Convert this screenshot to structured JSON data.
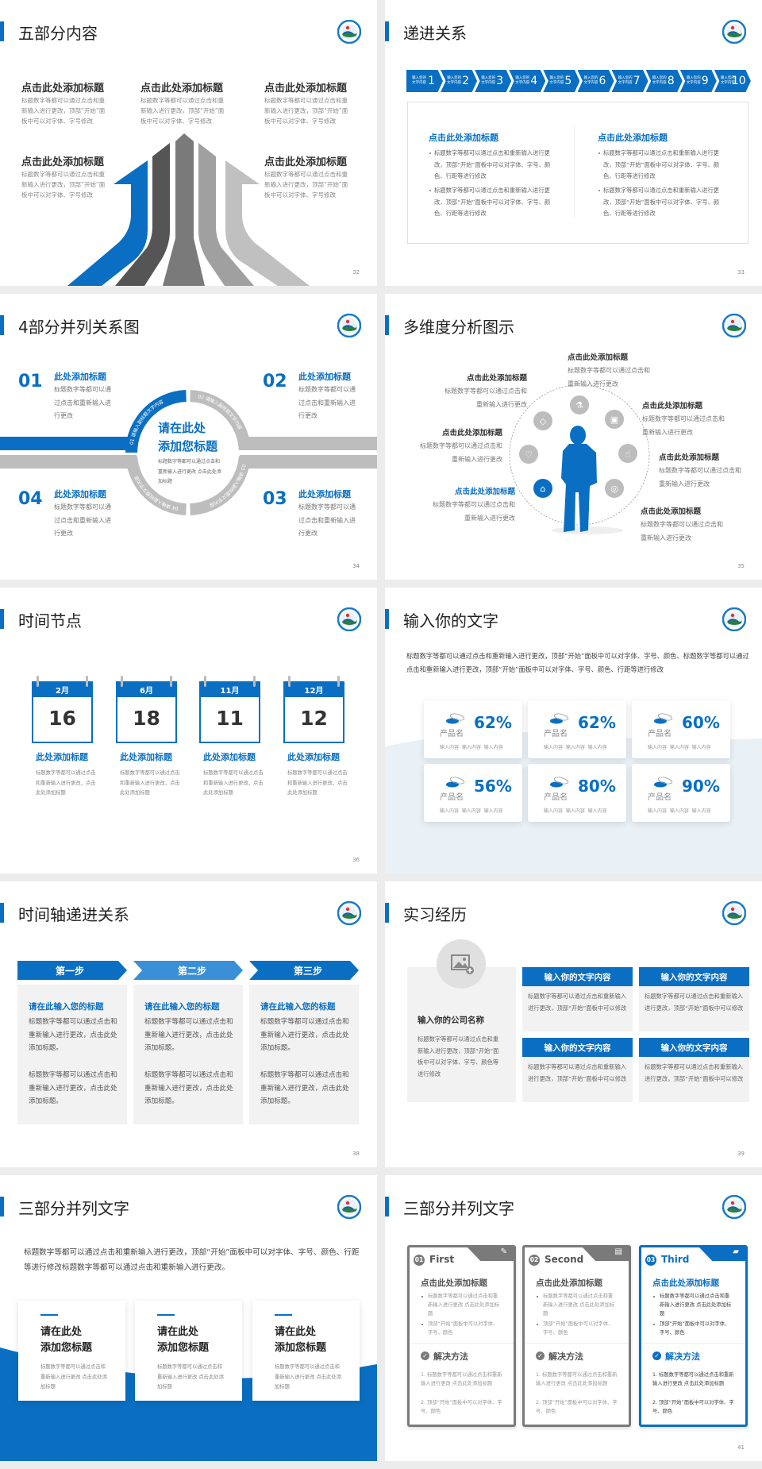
{
  "theme": {
    "accent": "#0a6fc2",
    "accent_light": "#3a8fd6",
    "gray_panel": "#f2f2f2",
    "gray_dark": "#777777"
  },
  "slides": [
    {
      "page": "32",
      "title": "五部分内容",
      "items": [
        {
          "title": "点击此处添加标题",
          "text": "标题数字等都可以通过点击和重新输入进行更改，顶部“开始”面板中可以对字体、字号修改"
        },
        {
          "title": "点击此处添加标题",
          "text": "标题数字等都可以通过点击和重新输入进行更改，顶部“开始”面板中可以对字体、字号修改"
        },
        {
          "title": "点击此处添加标题",
          "text": "标题数字等都可以通过点击和重新输入进行更改，顶部“开始”面板中可以对字体、字号修改"
        },
        {
          "title": "点击此处添加标题",
          "text": "标题数字等都可以通过点击和重新输入进行更改，顶部“开始”面板中可以对字体、字号修改"
        },
        {
          "title": "点击此处添加标题",
          "text": "标题数字等都可以通过点击和重新输入进行更改，顶部“开始”面板中可以对字体、字号修改"
        }
      ]
    },
    {
      "page": "33",
      "title": "递进关系",
      "steps": [
        {
          "label": "输入您的文字内容",
          "num": "1"
        },
        {
          "label": "输入您的文字内容",
          "num": "2"
        },
        {
          "label": "输入您的文字内容",
          "num": "3"
        },
        {
          "label": "输入您的文字内容",
          "num": "4"
        },
        {
          "label": "输入您的文字内容",
          "num": "5"
        },
        {
          "label": "输入您的文字内容",
          "num": "6"
        },
        {
          "label": "输入您的文字内容",
          "num": "7"
        },
        {
          "label": "输入您的文字内容",
          "num": "8"
        },
        {
          "label": "输入您的文字内容",
          "num": "9"
        },
        {
          "label": "输入您的文字内容",
          "num": "10"
        }
      ],
      "columns": [
        {
          "title": "点击此处添加标题",
          "bullets": [
            "标题数字等都可以通过点击和重新输入进行更改，顶部“开始”面板中可以对字体、字号、颜色、行距等进行修改",
            "标题数字等都可以通过点击和重新输入进行更改，顶部“开始”面板中可以对字体、字号、颜色、行距等进行修改"
          ]
        },
        {
          "title": "点击此处添加标题",
          "bullets": [
            "标题数字等都可以通过点击和重新输入进行更改，顶部“开始”面板中可以对字体、字号、颜色、行距等进行修改",
            "标题数字等都可以通过点击和重新输入进行更改，顶部“开始”面板中可以对字体、字号、颜色、行距等进行修改"
          ]
        }
      ]
    },
    {
      "page": "34",
      "title": "4部分并列关系图",
      "items": [
        {
          "num": "01",
          "title": "此处添加标题",
          "text": "标题数字等都可以通过点击和重新输入进行更改"
        },
        {
          "num": "02",
          "title": "此处添加标题",
          "text": "标题数字等都可以通过点击和重新输入进行更改"
        },
        {
          "num": "03",
          "title": "此处添加标题",
          "text": "标题数字等都可以通过点击和重新输入进行更改"
        },
        {
          "num": "04",
          "title": "此处添加标题",
          "text": "标题数字等都可以通过点击和重新输入进行更改"
        }
      ],
      "ring_labels": [
        "01 请输入副标题文字内容",
        "02 请输入副标题文字内容",
        "03 请输入副标题文字内容",
        "04 请输入副标题文字内容"
      ],
      "center": {
        "title_line1": "请在此处",
        "title_line2": "添加您标题",
        "text": "标题数字等都可以通过点击和重新输入进行更改 点击此处添加标题"
      }
    },
    {
      "page": "35",
      "title": "多维度分析图示",
      "items": [
        {
          "title": "点击此处添加标题",
          "text": "标题数字等都可以通过点击和重新输入进行更改"
        },
        {
          "title": "点击此处添加标题",
          "text": "标题数字等都可以通过点击和重新输入进行更改"
        },
        {
          "title": "点击此处添加标题",
          "text": "标题数字等都可以通过点击和重新输入进行更改"
        },
        {
          "title": "点击此处添加标题",
          "text": "标题数字等都可以通过点击和重新输入进行更改"
        },
        {
          "title": "点击此处添加标题",
          "text": "标题数字等都可以通过点击和重新输入进行更改"
        },
        {
          "title": "点击此处添加标题",
          "text": "标题数字等都可以通过点击和重新输入进行更改"
        },
        {
          "title": "点击此处添加标题",
          "text": "标题数字等都可以通过点击和重新输入进行更改"
        }
      ],
      "icons": [
        "bottle-icon",
        "lock-icon",
        "thumbs-up-icon",
        "globe-icon",
        "graduation-cap-icon",
        "heart-icon",
        "diamond-icon"
      ],
      "highlighted_icon": "graduation-cap-icon"
    },
    {
      "page": "36",
      "title": "时间节点",
      "items": [
        {
          "month": "2月",
          "day": "16",
          "title": "此处添加标题",
          "text": "标题数字等都可以通过点击和重新输入进行更改，点击此处添加标题"
        },
        {
          "month": "6月",
          "day": "18",
          "title": "此处添加标题",
          "text": "标题数字等都可以通过点击和重新输入进行更改，点击此处添加标题"
        },
        {
          "month": "11月",
          "day": "11",
          "title": "此处添加标题",
          "text": "标题数字等都可以通过点击和重新输入进行更改，点击此处添加标题"
        },
        {
          "month": "12月",
          "day": "12",
          "title": "此处添加标题",
          "text": "标题数字等都可以通过点击和重新输入进行更改，点击此处添加标题"
        }
      ]
    },
    {
      "page": "37",
      "title": "输入你的文字",
      "intro": "标题数字等都可以通过点击和重新输入进行更改，顶部“开始”面板中可以对字体、字号、颜色、标题数字等都可以通过点击和重新输入进行更改，顶部“开始”面板中可以对字体、字号、颜色、行距等进行修改",
      "cards": [
        {
          "percent": "62%",
          "name": "产品名",
          "sub": "输入内容  输入内容  输入内容"
        },
        {
          "percent": "62%",
          "name": "产品名",
          "sub": "输入内容  输入内容  输入内容"
        },
        {
          "percent": "60%",
          "name": "产品名",
          "sub": "输入内容  输入内容  输入内容"
        },
        {
          "percent": "56%",
          "name": "产品名",
          "sub": "输入内容  输入内容  输入内容"
        },
        {
          "percent": "80%",
          "name": "产品名",
          "sub": "输入内容  输入内容  输入内容"
        },
        {
          "percent": "90%",
          "name": "产品名",
          "sub": "输入内容  输入内容  输入内容"
        }
      ]
    },
    {
      "page": "38",
      "title": "时间轴递进关系",
      "steps": [
        {
          "label": "第一步",
          "title": "请在此输入您的标题",
          "paras": [
            "标题数字等都可以通过点击和重新输入进行更改，点击此处添加标题。",
            "标题数字等都可以通过点击和重新输入进行更改，点击此处添加标题。"
          ]
        },
        {
          "label": "第二步",
          "title": "请在此输入您的标题",
          "paras": [
            "标题数字等都可以通过点击和重新输入进行更改，点击此处添加标题。",
            "标题数字等都可以通过点击和重新输入进行更改，点击此处添加标题。"
          ]
        },
        {
          "label": "第三步",
          "title": "请在此输入您的标题",
          "paras": [
            "标题数字等都可以通过点击和重新输入进行更改，点击此处添加标题。",
            "标题数字等都可以通过点击和重新输入进行更改，点击此处添加标题。"
          ]
        }
      ]
    },
    {
      "page": "39",
      "title": "实习经历",
      "company": {
        "name": "输入你的公司名称",
        "text": "标题数字等都可以通过点击和重新输入进行更改，顶部“开始”面板中可以对字体、字号、颜色等进行修改"
      },
      "boxes": [
        {
          "title": "输入你的文字内容",
          "text": "标题数字等都可以通过点击和重新输入进行更改，顶部“开始”面板中可以修改"
        },
        {
          "title": "输入你的文字内容",
          "text": "标题数字等都可以通过点击和重新输入进行更改，顶部“开始”面板中可以修改"
        },
        {
          "title": "输入你的文字内容",
          "text": "标题数字等都可以通过点击和重新输入进行更改，顶部“开始”面板中可以修改"
        },
        {
          "title": "输入你的文字内容",
          "text": "标题数字等都可以通过点击和重新输入进行更改，顶部“开始”面板中可以修改"
        }
      ]
    },
    {
      "page": "40",
      "title": "三部分并列文字",
      "intro": "标题数字等都可以通过点击和重新输入进行更改，顶部“开始”面板中可以对字体、字号、颜色、行距等进行修改标题数字等都可以通过点击和重新输入进行更改。",
      "cards": [
        {
          "title_line1": "请在此处",
          "title_line2": "添加您标题",
          "text": "标题数字等都可以通过点击和重新输入进行更改 点击此处添加标题"
        },
        {
          "title_line1": "请在此处",
          "title_line2": "添加您标题",
          "text": "标题数字等都可以通过点击和重新输入进行更改 点击此处添加标题"
        },
        {
          "title_line1": "请在此处",
          "title_line2": "添加您标题",
          "text": "标题数字等都可以通过点击和重新输入进行更改 点击此处添加标题"
        }
      ]
    },
    {
      "page": "41",
      "title": "三部分并列文字",
      "cards": [
        {
          "num": "01",
          "label": "First",
          "icon": "notepad-icon",
          "title": "点击此处添加标题",
          "bullets": [
            "标题数字等都可以通过点击和重新输入进行更改 点击此处添加标题",
            "顶部“开始”面板中可以对字体、字号、颜色"
          ],
          "solution_label": "解决方法",
          "steps": [
            "1. 标题数字等都可以通过点击和重新输入进行更改 点击此处添加标题",
            "2. 顶部“开始”面板中可以对字体、字号、颜色"
          ]
        },
        {
          "num": "02",
          "label": "Second",
          "icon": "chat-icon",
          "title": "点击此处添加标题",
          "bullets": [
            "标题数字等都可以通过点击和重新输入进行更改 点击此处添加标题",
            "顶部“开始”面板中可以对字体、字号、颜色"
          ],
          "solution_label": "解决方法",
          "steps": [
            "1. 标题数字等都可以通过点击和重新输入进行更改 点击此处添加标题",
            "2. 顶部“开始”面板中可以对字体、字号、颜色"
          ]
        },
        {
          "num": "03",
          "label": "Third",
          "icon": "folder-icon",
          "title": "点击此处添加标题",
          "bullets": [
            "标题数字等都可以通过点击和重新输入进行更改 点击此处添加标题",
            "顶部“开始”面板中可以对字体、字号、颜色"
          ],
          "solution_label": "解决方法",
          "steps": [
            "1. 标题数字等都可以通过点击和重新输入进行更改 点击此处添加标题",
            "2. 顶部“开始”面板中可以对字体、字号、颜色"
          ]
        }
      ],
      "highlighted_card": "03"
    }
  ]
}
